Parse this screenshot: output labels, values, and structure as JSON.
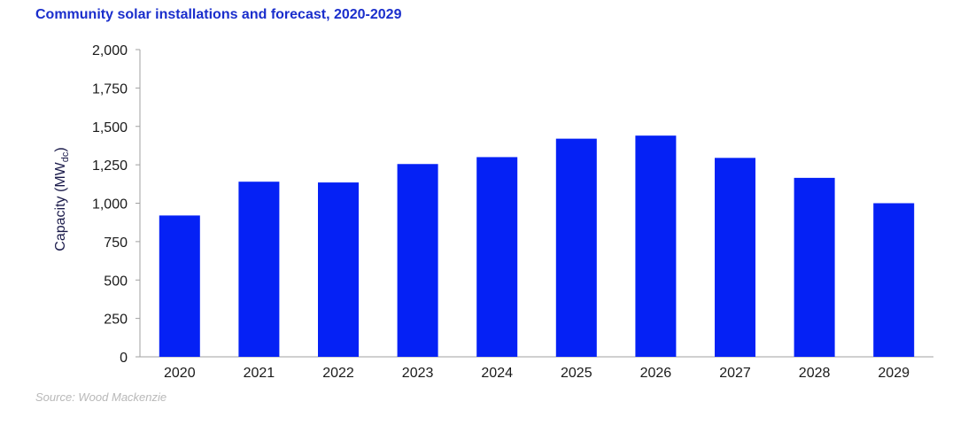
{
  "chart_data": {
    "type": "bar",
    "title": "Community solar installations and forecast, 2020-2029",
    "ylabel": "Capacity (MWdc)",
    "ylabel_main": "Capacity (MW",
    "ylabel_sub": "dc",
    "ylabel_close": ")",
    "xlabel": "",
    "categories": [
      "2020",
      "2021",
      "2022",
      "2023",
      "2024",
      "2025",
      "2026",
      "2027",
      "2028",
      "2029"
    ],
    "values": [
      920,
      1140,
      1135,
      1255,
      1300,
      1420,
      1440,
      1295,
      1165,
      1000
    ],
    "ylim": [
      0,
      2000
    ],
    "yticks": [
      0,
      250,
      500,
      750,
      1000,
      1250,
      1500,
      1750,
      2000
    ],
    "ytick_labels": [
      "0",
      "250",
      "500",
      "750",
      "1,000",
      "1,250",
      "1,500",
      "1,750",
      "2,000"
    ],
    "bar_color": "#0521f5",
    "grid": false,
    "legend": "none"
  },
  "source": "Source: Wood Mackenzie",
  "colors": {
    "title": "#1a2ecc",
    "axis": "#a0a0a0",
    "source": "#b8b8b8"
  }
}
